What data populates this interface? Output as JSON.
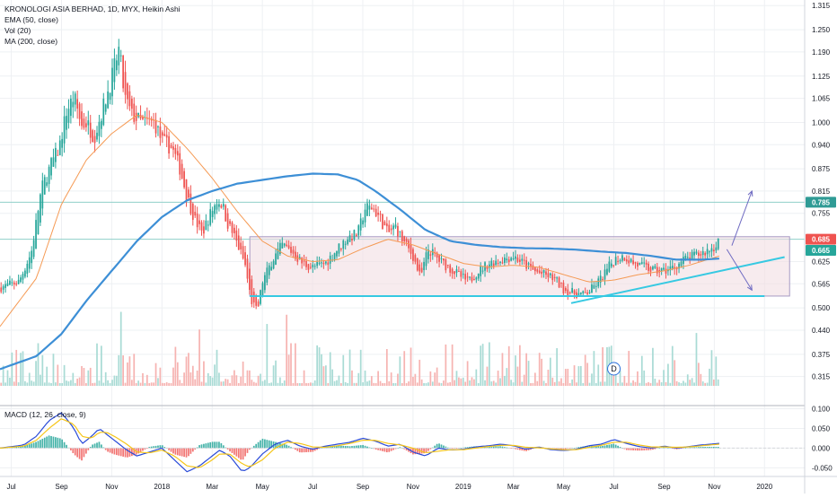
{
  "chart_data": {
    "type": "candlestick",
    "title": "KRONOLOGI ASIA BERHAD, 1D, MYX, Heikin Ashi",
    "indicators": [
      "EMA (50, close)",
      "Vol (20)",
      "MA (200, close)"
    ],
    "macd_label": "MACD (12, 26, close, 9)",
    "price_ticks": [
      "1.315",
      "1.250",
      "1.190",
      "1.125",
      "1.065",
      "1.000",
      "0.940",
      "0.875",
      "0.815",
      "0.755",
      "0.625",
      "0.565",
      "0.500",
      "0.440",
      "0.375",
      "0.315"
    ],
    "price_ylim": [
      0.29,
      1.33
    ],
    "macd_ticks": [
      "0.100",
      "0.050",
      "0.000",
      "-0.050"
    ],
    "macd_ylim": [
      -0.072,
      0.108
    ],
    "x_ticks": [
      "Jul",
      "Sep",
      "Nov",
      "2018",
      "Mar",
      "May",
      "Jul",
      "Sep",
      "Nov",
      "2019",
      "Mar",
      "May",
      "Jul",
      "Sep",
      "Nov",
      "2020"
    ],
    "x_tick_months": [
      0,
      2,
      4,
      6,
      8,
      10,
      12,
      14,
      16,
      18,
      20,
      22,
      24,
      26,
      28,
      30
    ],
    "x_range_months": [
      -0.45,
      31.6
    ],
    "tag_high": {
      "value": 0.785,
      "label": "0.785",
      "color": "#2f9b95"
    },
    "tag_current": {
      "value": 0.685,
      "label": "0.685",
      "color": "#ef5350"
    },
    "tag_ma": {
      "value": 0.665,
      "label": "0.665",
      "color": "#26a69a"
    },
    "range_box": {
      "t0": 9.5,
      "t1": 31.0,
      "top": 0.692,
      "bottom": 0.532
    },
    "support_line": {
      "t0": 9.5,
      "t1": 30.0,
      "value": 0.532
    },
    "rising_trendline": [
      [
        22.3,
        0.513
      ],
      [
        30.8,
        0.637
      ]
    ],
    "arrows": [
      {
        "from": [
          28.7,
          0.668
        ],
        "to": [
          29.5,
          0.815
        ],
        "direction": "up"
      },
      {
        "from": [
          28.5,
          0.658
        ],
        "to": [
          29.5,
          0.548
        ],
        "direction": "down"
      }
    ],
    "dividend_marker": "D",
    "dividend_month": 24.0,
    "close_anchors": [
      [
        -0.45,
        0.555
      ],
      [
        0.3,
        0.57
      ],
      [
        0.8,
        0.65
      ],
      [
        1.2,
        0.82
      ],
      [
        1.6,
        0.89
      ],
      [
        1.9,
        0.93
      ],
      [
        2.2,
        1.03
      ],
      [
        2.5,
        1.07
      ],
      [
        2.8,
        0.99
      ],
      [
        3.0,
        1.0
      ],
      [
        3.3,
        0.96
      ],
      [
        3.7,
        1.05
      ],
      [
        4.0,
        1.12
      ],
      [
        4.3,
        1.2
      ],
      [
        4.5,
        1.07
      ],
      [
        4.8,
        1.02
      ],
      [
        5.2,
        1.0
      ],
      [
        5.7,
        1.0
      ],
      [
        6.0,
        0.95
      ],
      [
        6.4,
        0.93
      ],
      [
        6.7,
        0.88
      ],
      [
        7.0,
        0.8
      ],
      [
        7.3,
        0.74
      ],
      [
        7.6,
        0.7
      ],
      [
        7.9,
        0.75
      ],
      [
        8.2,
        0.79
      ],
      [
        8.4,
        0.78
      ],
      [
        8.6,
        0.73
      ],
      [
        8.9,
        0.69
      ],
      [
        9.3,
        0.62
      ],
      [
        9.55,
        0.52
      ],
      [
        9.8,
        0.49
      ],
      [
        10.0,
        0.57
      ],
      [
        10.4,
        0.63
      ],
      [
        10.8,
        0.67
      ],
      [
        11.2,
        0.65
      ],
      [
        11.6,
        0.62
      ],
      [
        12.0,
        0.61
      ],
      [
        12.5,
        0.62
      ],
      [
        13.0,
        0.66
      ],
      [
        13.4,
        0.69
      ],
      [
        13.8,
        0.7
      ],
      [
        14.1,
        0.77
      ],
      [
        14.4,
        0.77
      ],
      [
        14.7,
        0.74
      ],
      [
        15.0,
        0.7
      ],
      [
        15.3,
        0.72
      ],
      [
        15.6,
        0.68
      ],
      [
        16.0,
        0.64
      ],
      [
        16.3,
        0.58
      ],
      [
        16.6,
        0.66
      ],
      [
        17.0,
        0.63
      ],
      [
        17.4,
        0.61
      ],
      [
        17.8,
        0.59
      ],
      [
        18.2,
        0.57
      ],
      [
        18.6,
        0.6
      ],
      [
        19.0,
        0.62
      ],
      [
        19.5,
        0.63
      ],
      [
        20.0,
        0.64
      ],
      [
        20.4,
        0.62
      ],
      [
        20.8,
        0.6
      ],
      [
        21.2,
        0.59
      ],
      [
        21.6,
        0.58
      ],
      [
        22.0,
        0.55
      ],
      [
        22.4,
        0.54
      ],
      [
        22.8,
        0.535
      ],
      [
        23.1,
        0.55
      ],
      [
        23.5,
        0.58
      ],
      [
        24.0,
        0.63
      ],
      [
        24.4,
        0.64
      ],
      [
        24.8,
        0.62
      ],
      [
        25.2,
        0.61
      ],
      [
        25.6,
        0.6
      ],
      [
        26.0,
        0.6
      ],
      [
        26.4,
        0.61
      ],
      [
        26.8,
        0.63
      ],
      [
        27.2,
        0.64
      ],
      [
        27.6,
        0.65
      ],
      [
        28.0,
        0.665
      ],
      [
        28.2,
        0.69
      ]
    ],
    "ema50_anchors": [
      [
        -0.45,
        0.45
      ],
      [
        1.0,
        0.58
      ],
      [
        2.0,
        0.78
      ],
      [
        3.0,
        0.9
      ],
      [
        4.0,
        0.97
      ],
      [
        5.0,
        1.02
      ],
      [
        6.0,
        1.0
      ],
      [
        7.0,
        0.93
      ],
      [
        8.0,
        0.85
      ],
      [
        9.0,
        0.76
      ],
      [
        10.0,
        0.68
      ],
      [
        11.0,
        0.64
      ],
      [
        12.0,
        0.625
      ],
      [
        13.0,
        0.63
      ],
      [
        14.0,
        0.66
      ],
      [
        15.0,
        0.685
      ],
      [
        16.0,
        0.67
      ],
      [
        17.0,
        0.645
      ],
      [
        18.0,
        0.62
      ],
      [
        19.0,
        0.61
      ],
      [
        20.0,
        0.615
      ],
      [
        21.0,
        0.61
      ],
      [
        22.0,
        0.59
      ],
      [
        23.0,
        0.57
      ],
      [
        24.0,
        0.575
      ],
      [
        25.0,
        0.59
      ],
      [
        26.0,
        0.6
      ],
      [
        27.0,
        0.615
      ],
      [
        28.2,
        0.64
      ]
    ],
    "ma200_anchors": [
      [
        -0.45,
        0.335
      ],
      [
        1.0,
        0.37
      ],
      [
        2.0,
        0.43
      ],
      [
        3.0,
        0.52
      ],
      [
        4.0,
        0.6
      ],
      [
        5.0,
        0.68
      ],
      [
        6.0,
        0.745
      ],
      [
        7.0,
        0.79
      ],
      [
        8.0,
        0.815
      ],
      [
        9.0,
        0.835
      ],
      [
        10.0,
        0.845
      ],
      [
        11.0,
        0.855
      ],
      [
        12.0,
        0.862
      ],
      [
        13.0,
        0.86
      ],
      [
        13.8,
        0.845
      ],
      [
        14.5,
        0.815
      ],
      [
        15.5,
        0.765
      ],
      [
        16.5,
        0.71
      ],
      [
        17.5,
        0.68
      ],
      [
        18.5,
        0.67
      ],
      [
        19.5,
        0.664
      ],
      [
        20.5,
        0.661
      ],
      [
        21.5,
        0.66
      ],
      [
        22.5,
        0.657
      ],
      [
        23.5,
        0.652
      ],
      [
        24.5,
        0.648
      ],
      [
        25.5,
        0.64
      ],
      [
        26.5,
        0.63
      ],
      [
        27.5,
        0.63
      ],
      [
        28.2,
        0.633
      ]
    ],
    "macd_anchors": [
      [
        -0.45,
        0.0
      ],
      [
        0.5,
        0.008
      ],
      [
        1.0,
        0.03
      ],
      [
        1.5,
        0.07
      ],
      [
        2.0,
        0.09
      ],
      [
        2.5,
        0.05
      ],
      [
        2.8,
        0.01
      ],
      [
        3.2,
        0.03
      ],
      [
        3.5,
        0.05
      ],
      [
        3.8,
        0.035
      ],
      [
        4.1,
        0.02
      ],
      [
        4.6,
        -0.005
      ],
      [
        5.0,
        -0.02
      ],
      [
        5.5,
        -0.01
      ],
      [
        6.0,
        0.0
      ],
      [
        6.5,
        -0.03
      ],
      [
        7.0,
        -0.06
      ],
      [
        7.5,
        -0.045
      ],
      [
        8.0,
        -0.02
      ],
      [
        8.3,
        -0.005
      ],
      [
        8.7,
        -0.02
      ],
      [
        9.2,
        -0.06
      ],
      [
        9.5,
        -0.05
      ],
      [
        10.0,
        -0.015
      ],
      [
        10.5,
        0.01
      ],
      [
        11.0,
        0.02
      ],
      [
        11.5,
        0.005
      ],
      [
        12.0,
        -0.003
      ],
      [
        12.5,
        0.005
      ],
      [
        13.0,
        0.01
      ],
      [
        13.5,
        0.015
      ],
      [
        14.0,
        0.025
      ],
      [
        14.5,
        0.018
      ],
      [
        15.0,
        0.005
      ],
      [
        15.5,
        0.01
      ],
      [
        16.0,
        -0.01
      ],
      [
        16.5,
        -0.02
      ],
      [
        17.0,
        0.0
      ],
      [
        17.5,
        -0.005
      ],
      [
        18.0,
        -0.003
      ],
      [
        18.5,
        0.003
      ],
      [
        19.0,
        0.006
      ],
      [
        19.5,
        0.01
      ],
      [
        20.0,
        0.006
      ],
      [
        20.5,
        -0.003
      ],
      [
        21.0,
        0.003
      ],
      [
        21.5,
        -0.004
      ],
      [
        22.0,
        -0.006
      ],
      [
        22.5,
        -0.003
      ],
      [
        23.0,
        0.006
      ],
      [
        23.5,
        0.01
      ],
      [
        24.0,
        0.022
      ],
      [
        24.5,
        0.012
      ],
      [
        25.0,
        0.004
      ],
      [
        25.5,
        0.0
      ],
      [
        26.0,
        0.005
      ],
      [
        26.5,
        0.0
      ],
      [
        27.0,
        0.004
      ],
      [
        27.5,
        0.008
      ],
      [
        28.2,
        0.012
      ]
    ],
    "signal_anchors": [
      [
        -0.45,
        0.0
      ],
      [
        0.5,
        0.005
      ],
      [
        1.0,
        0.02
      ],
      [
        1.5,
        0.05
      ],
      [
        2.0,
        0.075
      ],
      [
        2.5,
        0.06
      ],
      [
        2.8,
        0.03
      ],
      [
        3.2,
        0.025
      ],
      [
        3.5,
        0.04
      ],
      [
        3.8,
        0.04
      ],
      [
        4.1,
        0.03
      ],
      [
        4.6,
        0.01
      ],
      [
        5.0,
        -0.01
      ],
      [
        5.5,
        -0.012
      ],
      [
        6.0,
        -0.005
      ],
      [
        6.5,
        -0.02
      ],
      [
        7.0,
        -0.045
      ],
      [
        7.5,
        -0.05
      ],
      [
        8.0,
        -0.03
      ],
      [
        8.3,
        -0.015
      ],
      [
        8.7,
        -0.015
      ],
      [
        9.2,
        -0.04
      ],
      [
        9.5,
        -0.048
      ],
      [
        10.0,
        -0.03
      ],
      [
        10.5,
        0.0
      ],
      [
        11.0,
        0.015
      ],
      [
        11.5,
        0.012
      ],
      [
        12.0,
        0.003
      ],
      [
        12.5,
        0.002
      ],
      [
        13.0,
        0.006
      ],
      [
        13.5,
        0.012
      ],
      [
        14.0,
        0.02
      ],
      [
        14.5,
        0.02
      ],
      [
        15.0,
        0.012
      ],
      [
        15.5,
        0.008
      ],
      [
        16.0,
        0.0
      ],
      [
        16.5,
        -0.012
      ],
      [
        17.0,
        -0.008
      ],
      [
        17.5,
        -0.004
      ],
      [
        18.0,
        -0.004
      ],
      [
        18.5,
        0.0
      ],
      [
        19.0,
        0.004
      ],
      [
        19.5,
        0.007
      ],
      [
        20.0,
        0.007
      ],
      [
        20.5,
        0.002
      ],
      [
        21.0,
        0.001
      ],
      [
        21.5,
        -0.002
      ],
      [
        22.0,
        -0.004
      ],
      [
        22.5,
        -0.004
      ],
      [
        23.0,
        0.002
      ],
      [
        23.5,
        0.007
      ],
      [
        24.0,
        0.015
      ],
      [
        24.5,
        0.015
      ],
      [
        25.0,
        0.008
      ],
      [
        25.5,
        0.003
      ],
      [
        26.0,
        0.003
      ],
      [
        26.5,
        0.002
      ],
      [
        27.0,
        0.003
      ],
      [
        27.5,
        0.006
      ],
      [
        28.2,
        0.01
      ]
    ],
    "colors": {
      "up": "#26a69a",
      "down": "#ef5350",
      "ema50": "#f59a54",
      "ma200": "#3d8fd6",
      "macd": "#2a4bd8",
      "signal": "#f5c518",
      "trendline": "#36c9e2",
      "box_fill": "#f2dde2",
      "box_stroke": "#a79ac4",
      "arrow": "#6f6bc2",
      "grid": "#eef0f3",
      "hline": "#8fcfca"
    }
  }
}
